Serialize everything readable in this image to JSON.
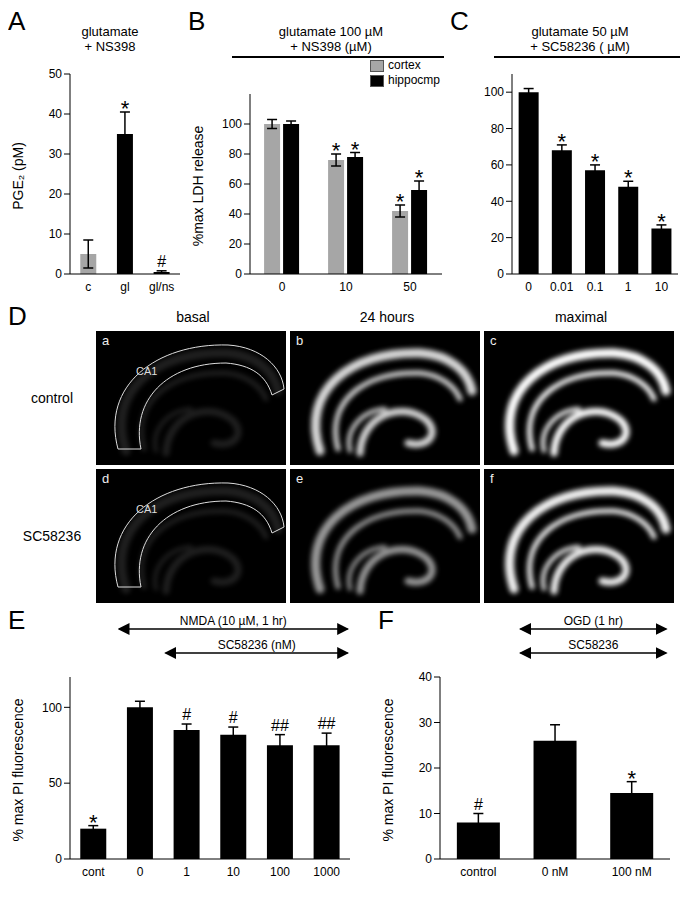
{
  "chart_data": [
    {
      "panel": "A",
      "type": "bar",
      "title": "glutamate\n+ NS398",
      "ylabel": "PGE₂ (pM)",
      "categories": [
        "c",
        "gl",
        "gl/ns"
      ],
      "values": [
        5,
        35,
        0.5
      ],
      "errors": [
        3.5,
        5.5,
        0.3
      ],
      "annotations": [
        null,
        "*",
        "#"
      ],
      "colors": [
        "#a6a6a6",
        "#000000",
        "#000000"
      ],
      "ylim": [
        0,
        50
      ],
      "yticks": [
        0,
        10,
        20,
        30,
        40,
        50
      ]
    },
    {
      "panel": "B",
      "type": "bar",
      "title": "glutamate 100  µM\n+ NS398 (µM)",
      "ylabel": "%max LDH release",
      "categories": [
        "0",
        "10",
        "50"
      ],
      "series": [
        {
          "name": "cortex",
          "color": "#a6a6a6",
          "values": [
            100,
            76,
            42
          ],
          "errors": [
            3,
            4,
            4
          ],
          "annotations": [
            null,
            "*",
            "*"
          ]
        },
        {
          "name": "hippocmp",
          "color": "#000000",
          "values": [
            100,
            78,
            56
          ],
          "errors": [
            2,
            3,
            6
          ],
          "annotations": [
            null,
            "*",
            "*"
          ]
        }
      ],
      "ylim": [
        0,
        120
      ],
      "yticks": [
        0,
        20,
        40,
        60,
        80,
        100
      ],
      "legend": "upper right"
    },
    {
      "panel": "C",
      "type": "bar",
      "title": "glutamate 50  µM\n+ SC58236 ( µM)",
      "categories": [
        "0",
        "0.01",
        "0.1",
        "1",
        "10"
      ],
      "values": [
        100,
        68,
        57,
        48,
        25
      ],
      "errors": [
        2,
        3,
        3,
        3,
        2
      ],
      "annotations": [
        null,
        "*",
        "*",
        "*",
        "*"
      ],
      "color": "#000000",
      "ylim": [
        0,
        110
      ],
      "yticks": [
        0,
        20,
        40,
        60,
        80,
        100
      ]
    },
    {
      "panel": "E",
      "type": "bar",
      "ylabel": "% max PI fluorescence",
      "categories": [
        "cont",
        "0",
        "1",
        "10",
        "100",
        "1000"
      ],
      "values": [
        20,
        100,
        85,
        82,
        75,
        75
      ],
      "errors": [
        2,
        4,
        4,
        5,
        7,
        8
      ],
      "annotations": [
        "*",
        null,
        "#",
        "#",
        "##",
        "##"
      ],
      "color": "#000000",
      "ylim": [
        0,
        120
      ],
      "yticks": [
        0,
        50,
        100
      ],
      "arrows": [
        {
          "label": "NMDA (10 µM, 1 hr)",
          "from": "0",
          "to": "1000"
        },
        {
          "label": "SC58236 (nM)",
          "from": "1",
          "to": "1000"
        }
      ]
    },
    {
      "panel": "F",
      "type": "bar",
      "ylabel": "% max PI fluorescence",
      "categories": [
        "control",
        "0 nM",
        "100 nM"
      ],
      "values": [
        8,
        26,
        14.5
      ],
      "errors": [
        2,
        3.5,
        2.5
      ],
      "annotations": [
        "#",
        null,
        "*"
      ],
      "color": "#000000",
      "ylim": [
        0,
        40
      ],
      "yticks": [
        0,
        10,
        20,
        30,
        40
      ],
      "arrows": [
        {
          "label": "OGD (1 hr)",
          "from": "0 nM",
          "to": "100 nM"
        },
        {
          "label": "SC58236",
          "from": "0 nM",
          "to": "100 nM"
        }
      ]
    }
  ],
  "panel_D": {
    "panel": "D",
    "columns": [
      "basal",
      "24 hours",
      "maximal"
    ],
    "rows": [
      "control",
      "SC58236"
    ],
    "tiles": [
      "a",
      "b",
      "c",
      "d",
      "e",
      "f"
    ],
    "region": "CA1"
  }
}
